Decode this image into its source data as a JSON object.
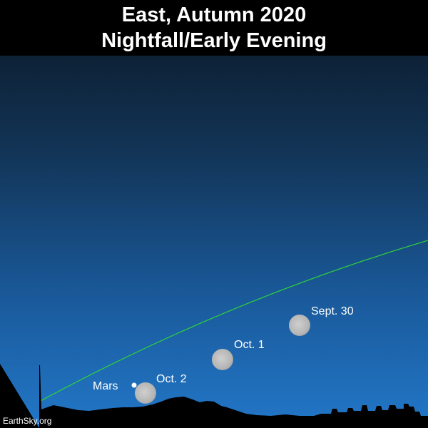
{
  "title": {
    "line1": "East, Autumn 2020",
    "line2": "Nightfall/Early Evening"
  },
  "labels": {
    "sept30": "Sept. 30",
    "oct1": "Oct. 1",
    "oct2": "Oct. 2",
    "mars": "Mars"
  },
  "credit": "EarthSky.org",
  "colors": {
    "sky_top": "#0b1624",
    "sky_bottom": "#1e6fbf",
    "ecliptic": "#2ecc40",
    "moon": "#bdbdbd",
    "ground": "#000000"
  }
}
